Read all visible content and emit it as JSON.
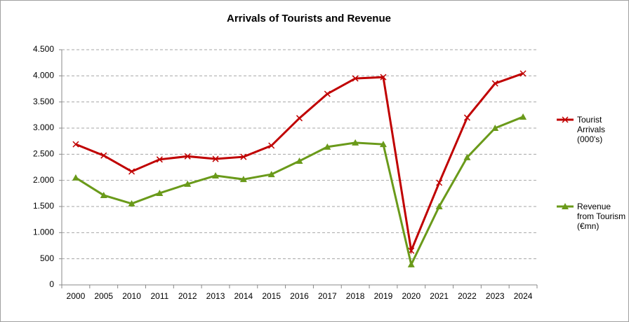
{
  "chart_data": {
    "type": "line",
    "title": "Arrivals of Tourists and Revenue",
    "categories": [
      "2000",
      "2005",
      "2010",
      "2011",
      "2012",
      "2013",
      "2014",
      "2015",
      "2016",
      "2017",
      "2018",
      "2019",
      "2020",
      "2021",
      "2022",
      "2023",
      "2024"
    ],
    "series": [
      {
        "name": "Tourist Arrivals (000's)",
        "color": "#c00000",
        "marker": "x",
        "values": [
          2690,
          2475,
          2170,
          2400,
          2460,
          2410,
          2450,
          2665,
          3190,
          3655,
          3950,
          3975,
          655,
          1955,
          3200,
          3855,
          4045
        ]
      },
      {
        "name": "Revenue from Tourism (€mn)",
        "color": "#6a9a1a",
        "marker": "triangle",
        "values": [
          2050,
          1715,
          1555,
          1755,
          1930,
          2090,
          2020,
          2115,
          2370,
          2640,
          2720,
          2690,
          390,
          1500,
          2440,
          3000,
          3215
        ]
      }
    ],
    "ylim": [
      0,
      4500
    ],
    "yticks": [
      0,
      500,
      {
        "value": 1000,
        "label": "1.000"
      },
      {
        "value": 1500,
        "label": "1.500"
      },
      {
        "value": 2000,
        "label": "2.000"
      },
      {
        "value": 2500,
        "label": "2.500"
      },
      {
        "value": 3000,
        "label": "3.000"
      },
      {
        "value": 3500,
        "label": "3.500"
      },
      {
        "value": 4000,
        "label": "4.000"
      },
      {
        "value": 4500,
        "label": "4.500"
      }
    ],
    "grid": true,
    "legend": "right"
  }
}
